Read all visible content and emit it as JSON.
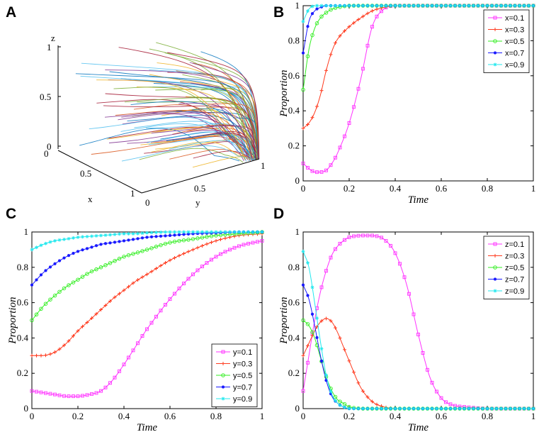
{
  "figure": {
    "panel_letters": [
      "A",
      "B",
      "C",
      "D"
    ],
    "series_colors": [
      "#ff33ff",
      "#ff3b1f",
      "#33ee22",
      "#1a1aff",
      "#22e8ee"
    ],
    "marker_shapes": [
      "square",
      "plus",
      "circle",
      "dot",
      "star"
    ]
  },
  "chart_data": [
    {
      "panel": "A",
      "type": "line",
      "description_kind": "3d-trajectories",
      "xlabel": "x",
      "ylabel": "y",
      "zlabel": "z",
      "xlim": [
        0,
        1
      ],
      "ylim": [
        0,
        1
      ],
      "zlim": [
        0,
        1
      ],
      "x_ticks": [
        "0",
        "0.5",
        "1"
      ],
      "y_ticks": [
        "0",
        "0.5",
        "1"
      ],
      "z_ticks": [
        "0",
        "0.5",
        "1"
      ]
    },
    {
      "panel": "B",
      "type": "line",
      "xlabel": "Time",
      "ylabel": "Proportion",
      "xlim": [
        0,
        1
      ],
      "ylim": [
        0,
        1
      ],
      "x_ticks": [
        "0",
        "0.2",
        "0.4",
        "0.6",
        "0.8",
        "1"
      ],
      "y_ticks": [
        "0",
        "0.2",
        "0.4",
        "0.6",
        "0.8",
        "1"
      ],
      "legend_position": "top-right",
      "x": [
        0,
        0.025,
        0.05,
        0.075,
        0.1,
        0.125,
        0.15,
        0.2,
        0.25,
        0.3,
        0.35,
        0.4,
        0.5,
        0.6,
        0.8,
        1
      ],
      "series": [
        {
          "name": "x=0.1",
          "values": [
            0.1,
            0.07,
            0.05,
            0.05,
            0.06,
            0.1,
            0.16,
            0.33,
            0.58,
            0.88,
            0.98,
            1.0,
            1.0,
            1.0,
            1.0,
            1.0
          ]
        },
        {
          "name": "x=0.3",
          "values": [
            0.3,
            0.33,
            0.39,
            0.49,
            0.63,
            0.74,
            0.81,
            0.88,
            0.93,
            0.97,
            0.99,
            1.0,
            1.0,
            1.0,
            1.0,
            1.0
          ]
        },
        {
          "name": "x=0.5",
          "values": [
            0.52,
            0.75,
            0.87,
            0.93,
            0.96,
            0.98,
            0.99,
            1.0,
            1.0,
            1.0,
            1.0,
            1.0,
            1.0,
            1.0,
            1.0,
            1.0
          ]
        },
        {
          "name": "x=0.7",
          "values": [
            0.73,
            0.91,
            0.97,
            0.99,
            1.0,
            1.0,
            1.0,
            1.0,
            1.0,
            1.0,
            1.0,
            1.0,
            1.0,
            1.0,
            1.0,
            1.0
          ]
        },
        {
          "name": "x=0.9",
          "values": [
            0.91,
            0.98,
            1.0,
            1.0,
            1.0,
            1.0,
            1.0,
            1.0,
            1.0,
            1.0,
            1.0,
            1.0,
            1.0,
            1.0,
            1.0,
            1.0
          ]
        }
      ]
    },
    {
      "panel": "C",
      "type": "line",
      "xlabel": "Time",
      "ylabel": "Proportion",
      "xlim": [
        0,
        1
      ],
      "ylim": [
        0,
        1
      ],
      "x_ticks": [
        "0",
        "0.2",
        "0.4",
        "0.6",
        "0.8",
        "1"
      ],
      "y_ticks": [
        "0",
        "0.2",
        "0.4",
        "0.6",
        "0.8",
        "1"
      ],
      "legend_position": "bottom-right",
      "x": [
        0,
        0.05,
        0.1,
        0.15,
        0.2,
        0.25,
        0.3,
        0.35,
        0.4,
        0.45,
        0.5,
        0.6,
        0.7,
        0.8,
        0.9,
        1
      ],
      "series": [
        {
          "name": "y=0.1",
          "values": [
            0.1,
            0.09,
            0.08,
            0.07,
            0.07,
            0.08,
            0.1,
            0.16,
            0.25,
            0.35,
            0.45,
            0.62,
            0.76,
            0.86,
            0.92,
            0.95
          ]
        },
        {
          "name": "y=0.3",
          "values": [
            0.3,
            0.3,
            0.32,
            0.37,
            0.44,
            0.5,
            0.56,
            0.62,
            0.67,
            0.72,
            0.76,
            0.84,
            0.9,
            0.95,
            0.98,
            0.99
          ]
        },
        {
          "name": "y=0.5",
          "values": [
            0.5,
            0.58,
            0.64,
            0.69,
            0.73,
            0.77,
            0.8,
            0.83,
            0.86,
            0.88,
            0.9,
            0.94,
            0.96,
            0.98,
            0.99,
            1.0
          ]
        },
        {
          "name": "y=0.7",
          "values": [
            0.7,
            0.77,
            0.82,
            0.86,
            0.89,
            0.91,
            0.93,
            0.94,
            0.95,
            0.96,
            0.97,
            0.98,
            0.99,
            0.995,
            1.0,
            1.0
          ]
        },
        {
          "name": "y=0.9",
          "values": [
            0.9,
            0.93,
            0.95,
            0.96,
            0.97,
            0.975,
            0.98,
            0.985,
            0.99,
            0.99,
            0.995,
            1.0,
            1.0,
            1.0,
            1.0,
            1.0
          ]
        }
      ]
    },
    {
      "panel": "D",
      "type": "line",
      "xlabel": "Time",
      "ylabel": "Proportion",
      "xlim": [
        0,
        1
      ],
      "ylim": [
        0,
        1
      ],
      "x_ticks": [
        "0",
        "0.2",
        "0.4",
        "0.6",
        "0.8",
        "1"
      ],
      "y_ticks": [
        "0",
        "0.2",
        "0.4",
        "0.6",
        "0.8",
        "1"
      ],
      "legend_position": "top-right",
      "x": [
        0,
        0.025,
        0.05,
        0.075,
        0.1,
        0.125,
        0.15,
        0.175,
        0.2,
        0.25,
        0.3,
        0.35,
        0.4,
        0.45,
        0.5,
        0.55,
        0.6,
        0.65,
        0.7,
        0.8,
        1
      ],
      "series": [
        {
          "name": "z=0.1",
          "values": [
            0.1,
            0.3,
            0.5,
            0.66,
            0.78,
            0.87,
            0.92,
            0.95,
            0.97,
            0.98,
            0.98,
            0.96,
            0.88,
            0.7,
            0.42,
            0.18,
            0.06,
            0.02,
            0.01,
            0.0,
            0.0
          ]
        },
        {
          "name": "z=0.3",
          "values": [
            0.3,
            0.37,
            0.44,
            0.49,
            0.51,
            0.49,
            0.43,
            0.35,
            0.27,
            0.12,
            0.04,
            0.01,
            0.0,
            0.0,
            0.0,
            0.0,
            0.0,
            0.0,
            0.0,
            0.0,
            0.0
          ]
        },
        {
          "name": "z=0.5",
          "values": [
            0.5,
            0.47,
            0.4,
            0.29,
            0.18,
            0.1,
            0.05,
            0.03,
            0.01,
            0.0,
            0.0,
            0.0,
            0.0,
            0.0,
            0.0,
            0.0,
            0.0,
            0.0,
            0.0,
            0.0,
            0.0
          ]
        },
        {
          "name": "z=0.7",
          "values": [
            0.7,
            0.62,
            0.47,
            0.3,
            0.16,
            0.07,
            0.03,
            0.01,
            0.0,
            0.0,
            0.0,
            0.0,
            0.0,
            0.0,
            0.0,
            0.0,
            0.0,
            0.0,
            0.0,
            0.0,
            0.0
          ]
        },
        {
          "name": "z=0.9",
          "values": [
            0.89,
            0.8,
            0.6,
            0.38,
            0.19,
            0.08,
            0.03,
            0.01,
            0.0,
            0.0,
            0.0,
            0.0,
            0.0,
            0.0,
            0.0,
            0.0,
            0.0,
            0.0,
            0.0,
            0.0,
            0.0
          ]
        }
      ]
    }
  ]
}
